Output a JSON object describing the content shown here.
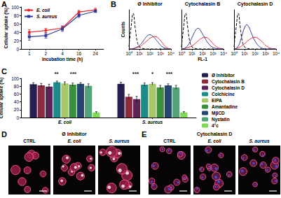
{
  "panels": [
    "A",
    "B",
    "C",
    "D",
    "E"
  ],
  "chart_data": [
    {
      "type": "line",
      "xlabel": "Incubation time (h)",
      "ylabel": "Cellular uptake (%)",
      "categories": [
        "1",
        "2",
        "4",
        "16",
        "24"
      ],
      "series": [
        {
          "name": "E. coli",
          "color": "#e8262a",
          "marker": "circle",
          "values": [
            40,
            44,
            50,
            88,
            93
          ],
          "errors": [
            6,
            5,
            5,
            4,
            4
          ]
        },
        {
          "name": "S. aureus",
          "color": "#2b3a9b",
          "marker": "square",
          "values": [
            29,
            32,
            48,
            80,
            90
          ],
          "errors": [
            8,
            6,
            6,
            5,
            3
          ]
        }
      ],
      "ylim": [
        0,
        100
      ],
      "yticks": [
        0,
        20,
        40,
        60,
        80,
        100
      ],
      "grid": false,
      "legend": "upper left"
    },
    {
      "type": "line",
      "title": "Ø Inhibitor",
      "ylabel": "Counts",
      "log": "x",
      "x": [
        1,
        1.6,
        2.5,
        4,
        6.3,
        10,
        16,
        25,
        40,
        63,
        100,
        160,
        250,
        400,
        630,
        1000,
        1600,
        2500,
        4000,
        6300,
        10000
      ],
      "xlim": [
        1,
        10000
      ],
      "xticks": [
        {
          "value": 1,
          "label": "10⁰"
        },
        {
          "value": 10,
          "label": "10¹"
        },
        {
          "value": 100,
          "label": "10²"
        },
        {
          "value": 1000,
          "label": "10³"
        },
        {
          "value": 10000,
          "label": "10⁴"
        }
      ],
      "ylim": [
        0,
        110
      ],
      "tick_labels": "x",
      "grid": false,
      "series": [
        {
          "name": "CTRL",
          "color": "#000000",
          "line_style": "dashed",
          "values": [
            6,
            62,
            100,
            58,
            20,
            6,
            2,
            1,
            0,
            0,
            0,
            0,
            0,
            0,
            0,
            0,
            0,
            0,
            0,
            0,
            0
          ]
        },
        {
          "name": "E. coli",
          "color": "#e8262a",
          "line_style": "solid",
          "values": [
            0,
            0,
            1,
            2,
            4,
            6,
            10,
            15,
            20,
            25,
            30,
            33,
            35,
            34,
            30,
            24,
            16,
            9,
            4,
            1,
            0
          ]
        },
        {
          "name": "S. aureus",
          "color": "#2b3a9b",
          "line_style": "solid",
          "values": [
            0,
            0,
            1,
            3,
            6,
            10,
            16,
            24,
            32,
            38,
            40,
            37,
            32,
            25,
            18,
            11,
            6,
            3,
            1,
            0,
            0
          ]
        }
      ]
    },
    {
      "type": "line",
      "title": "Cytochalasin B",
      "xlabel": "FL-1",
      "log": "x",
      "x": [
        1,
        1.6,
        2.5,
        4,
        6.3,
        10,
        16,
        25,
        40,
        63,
        100,
        160,
        250,
        400,
        630,
        1000,
        1600,
        2500,
        4000,
        6300,
        10000
      ],
      "xlim": [
        1,
        10000
      ],
      "xticks": [
        {
          "value": 1,
          "label": "10⁰"
        },
        {
          "value": 10,
          "label": "10¹"
        },
        {
          "value": 100,
          "label": "10²"
        },
        {
          "value": 1000,
          "label": "10³"
        },
        {
          "value": 10000,
          "label": "10⁴"
        }
      ],
      "ylim": [
        0,
        110
      ],
      "tick_labels": "x",
      "grid": false,
      "series": [
        {
          "name": "CTRL",
          "color": "#000000",
          "line_style": "dashed",
          "values": [
            6,
            62,
            100,
            58,
            20,
            6,
            2,
            1,
            0,
            0,
            0,
            0,
            0,
            0,
            0,
            0,
            0,
            0,
            0,
            0,
            0
          ]
        },
        {
          "name": "E. coli",
          "color": "#e8262a",
          "line_style": "solid",
          "values": [
            0,
            0,
            2,
            4,
            6,
            9,
            13,
            18,
            23,
            28,
            31,
            33,
            32,
            28,
            22,
            15,
            9,
            5,
            2,
            1,
            0
          ]
        },
        {
          "name": "S. aureus",
          "color": "#2b3a9b",
          "line_style": "solid",
          "values": [
            0,
            1,
            4,
            10,
            20,
            32,
            45,
            55,
            58,
            52,
            42,
            32,
            22,
            14,
            8,
            4,
            2,
            1,
            0,
            0,
            0
          ]
        }
      ]
    },
    {
      "type": "line",
      "title": "Cytochalasin D",
      "log": "x",
      "x": [
        1,
        1.6,
        2.5,
        4,
        6.3,
        10,
        16,
        25,
        40,
        63,
        100,
        160,
        250,
        400,
        630,
        1000,
        1600,
        2500,
        4000,
        6300,
        10000
      ],
      "xlim": [
        1,
        10000
      ],
      "xticks": [
        {
          "value": 1,
          "label": "10⁰"
        },
        {
          "value": 10,
          "label": "10¹"
        },
        {
          "value": 100,
          "label": "10²"
        },
        {
          "value": 1000,
          "label": "10³"
        },
        {
          "value": 10000,
          "label": "10⁴"
        }
      ],
      "ylim": [
        0,
        110
      ],
      "tick_labels": "x",
      "grid": false,
      "series": [
        {
          "name": "CTRL",
          "color": "#000000",
          "line_style": "dashed",
          "values": [
            6,
            62,
            100,
            58,
            20,
            6,
            2,
            1,
            0,
            0,
            0,
            0,
            0,
            0,
            0,
            0,
            0,
            0,
            0,
            0,
            0
          ]
        },
        {
          "name": "E. coli",
          "color": "#e8262a",
          "line_style": "solid",
          "values": [
            0,
            1,
            3,
            6,
            10,
            15,
            20,
            25,
            29,
            32,
            33,
            31,
            27,
            22,
            16,
            10,
            6,
            3,
            1,
            0,
            0
          ]
        },
        {
          "name": "S. aureus",
          "color": "#2b3a9b",
          "line_style": "solid",
          "values": [
            0,
            2,
            8,
            22,
            42,
            60,
            68,
            62,
            48,
            34,
            22,
            13,
            7,
            3,
            1,
            0,
            0,
            0,
            0,
            0,
            0
          ]
        }
      ]
    },
    {
      "type": "bar",
      "ylabel": "Cellular uptake (%)",
      "categories": [
        "E. coli",
        "S. aureus"
      ],
      "series": [
        {
          "name": "Ø Inhibitor",
          "color": "#241f4f",
          "values": [
            85,
            86
          ],
          "errors": [
            4,
            4
          ]
        },
        {
          "name": "Cytochalasin B",
          "color": "#8c2d3f",
          "values": [
            82,
            53
          ],
          "errors": [
            5,
            6
          ]
        },
        {
          "name": "Cytochalasin D",
          "color": "#5b2455",
          "values": [
            79,
            47
          ],
          "errors": [
            6,
            7
          ]
        },
        {
          "name": "Colchicine",
          "color": "#1e8a8a",
          "values": [
            90,
            84
          ],
          "errors": [
            3,
            4
          ]
        },
        {
          "name": "EIPA",
          "color": "#a8c66c",
          "values": [
            87,
            86
          ],
          "errors": [
            4,
            3
          ]
        },
        {
          "name": "Amantadine",
          "color": "#3c8f3c",
          "values": [
            84,
            77
          ],
          "errors": [
            4,
            5
          ]
        },
        {
          "name": "MβCD",
          "color": "#27466e",
          "values": [
            86,
            82
          ],
          "errors": [
            3,
            4
          ]
        },
        {
          "name": "Nystatin",
          "color": "#52a37a",
          "values": [
            81,
            77
          ],
          "errors": [
            5,
            5
          ]
        },
        {
          "name": "4°c",
          "color": "#7ed957",
          "values": [
            13,
            13
          ],
          "errors": [
            2,
            2
          ]
        }
      ],
      "ylim": [
        0,
        100
      ],
      "yticks": [
        0,
        20,
        40,
        60,
        80,
        100
      ],
      "grid": false,
      "legend": "right",
      "annotations": [
        {
          "text": "**",
          "category": "E. coli"
        },
        {
          "text": "***",
          "category": "E. coli"
        },
        {
          "text": "***",
          "category": "S. aureus"
        },
        {
          "text": "*",
          "category": "S. aureus"
        },
        {
          "text": "***",
          "category": "S. aureus"
        }
      ]
    }
  ],
  "images": [
    {
      "panel": "D",
      "title": "Ø Inhibitor",
      "labels": [
        "CTRL",
        "E. coli",
        "S. aureus"
      ]
    },
    {
      "panel": "E",
      "title": "Cytochalasin D",
      "labels": [
        "CTRL",
        "E. coli",
        "S. aureus"
      ]
    }
  ]
}
